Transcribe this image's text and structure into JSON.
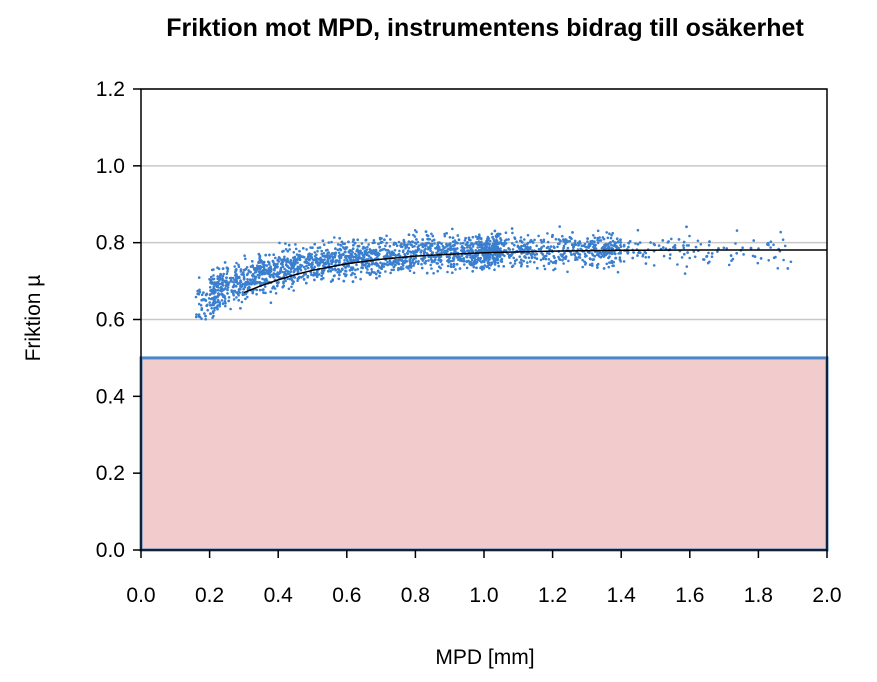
{
  "chart_data": {
    "type": "scatter",
    "title": "Friktion mot MPD, instrumentens bidrag till osäkerhet",
    "xlabel": "MPD [mm]",
    "ylabel": "Friktion µ",
    "xlim": [
      0.0,
      2.0
    ],
    "ylim": [
      0.0,
      1.2
    ],
    "xticks": [
      "0.0",
      "0.2",
      "0.4",
      "0.6",
      "0.8",
      "1.0",
      "1.2",
      "1.4",
      "1.6",
      "1.8",
      "2.0"
    ],
    "yticks": [
      "0.0",
      "0.2",
      "0.4",
      "0.6",
      "0.8",
      "1.0",
      "1.2"
    ],
    "grid": "horizontal",
    "legend": "none",
    "scatter_cloud": {
      "x_range": [
        0.15,
        1.9
      ],
      "y_range": [
        0.62,
        0.84
      ],
      "approx_density": "very dense between 0.2 and 1.2 mm, sparse above 1.4 mm"
    },
    "fit_curve": {
      "x": [
        0.3,
        0.35,
        0.4,
        0.45,
        0.5,
        0.6,
        0.7,
        0.8,
        0.9,
        1.0,
        1.2,
        1.4,
        1.6,
        1.8,
        2.0
      ],
      "y": [
        0.67,
        0.688,
        0.703,
        0.717,
        0.728,
        0.745,
        0.757,
        0.765,
        0.77,
        0.774,
        0.778,
        0.78,
        0.781,
        0.781,
        0.781
      ]
    },
    "shaded_region": {
      "x": [
        0.0,
        2.0
      ],
      "y": [
        0.0,
        0.5
      ]
    },
    "colors": {
      "points": "#3a7fcf",
      "fit_line": "#000000",
      "region_fill": "#f2cccc",
      "region_border": "#4a86c8",
      "grid": "#c8c8c8"
    }
  }
}
